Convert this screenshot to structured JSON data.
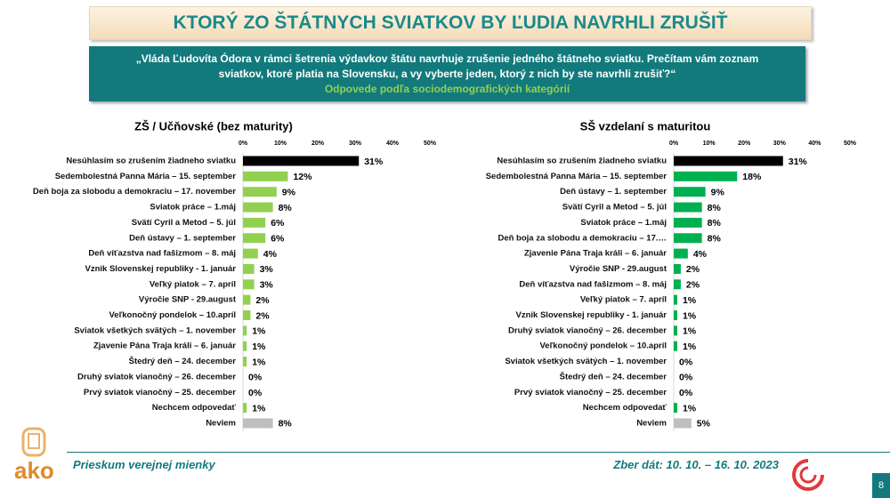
{
  "header": {
    "title": "KTORÝ ZO ŠTÁTNYCH SVIATKOV BY ĽUDIA NAVRHLI ZRUŠIŤ",
    "question_line1": "„Vláda Ľudovíta Ódora v rámci šetrenia výdavkov štátu navrhuje zrušenie jedného štátneho sviatku. Prečítam vám zoznam",
    "question_line2": "sviatkov,  ktoré platia na Slovensku, a vy vyberte jeden,  ktorý z nich by ste navrhli zrušiť?“",
    "subtitle": "Odpovede podľa sociodemografických kategórií"
  },
  "footer": {
    "logo": "ako",
    "left": "Prieskum verejnej mienky",
    "right": "Zber dát: 10. 10. – 16. 10. 2023",
    "page": "8"
  },
  "chart_data": [
    {
      "type": "bar",
      "orientation": "horizontal",
      "title": "ZŠ / Učňovské (bez maturity)",
      "categories": [
        "Nesúhlasím so zrušením žiadneho sviatku",
        "Sedembolestná Panna Mária – 15. september",
        "Deň boja za slobodu a demokraciu – 17. november",
        "Sviatok práce – 1.máj",
        "Svätí Cyril a Metod – 5. júl",
        "Deň ústavy – 1. september",
        "Deň víťazstva nad fašizmom – 8. máj",
        "Vznik Slovenskej republiky - 1. január",
        "Veľký piatok – 7. apríl",
        "Výročie SNP - 29.august",
        "Veľkonočný pondelok – 10.apríl",
        "Sviatok všetkých svätých – 1. november",
        "Zjavenie Pána Traja králi – 6. január",
        "Štedrý deň – 24. december",
        "Druhý sviatok vianočný – 26. december",
        "Prvý sviatok vianočný – 25. december",
        "Nechcem odpovedať",
        "Neviem"
      ],
      "values": [
        31,
        12,
        9,
        8,
        6,
        6,
        4,
        3,
        3,
        2,
        2,
        1,
        1,
        1,
        0,
        0,
        1,
        8
      ],
      "value_labels": [
        "31%",
        "12%",
        "9%",
        "8%",
        "6%",
        "6%",
        "4%",
        "3%",
        "3%",
        "2%",
        "2%",
        "1%",
        "1%",
        "1%",
        "0%",
        "0%",
        "1%",
        "8%"
      ],
      "colors": [
        "#000000",
        "#92d050",
        "#92d050",
        "#92d050",
        "#92d050",
        "#92d050",
        "#92d050",
        "#92d050",
        "#92d050",
        "#92d050",
        "#92d050",
        "#92d050",
        "#92d050",
        "#92d050",
        "#92d050",
        "#92d050",
        "#92d050",
        "#bfbfbf"
      ],
      "xlim": [
        0,
        50
      ],
      "xticks": [
        {
          "value": 0,
          "label": "0%"
        },
        {
          "value": 10,
          "label": "10%"
        },
        {
          "value": 20,
          "label": "20%"
        },
        {
          "value": 30,
          "label": "30%"
        },
        {
          "value": 40,
          "label": "40%"
        },
        {
          "value": 50,
          "label": "50%"
        }
      ]
    },
    {
      "type": "bar",
      "orientation": "horizontal",
      "title": "SŠ vzdelaní s maturitou",
      "categories": [
        "Nesúhlasím so zrušením žiadneho sviatku",
        "Sedembolestná Panna Mária – 15. september",
        "Deň ústavy – 1. september",
        "Svätí Cyril a Metod – 5. júl",
        "Sviatok práce – 1.máj",
        "Deň boja za slobodu a demokraciu – 17.…",
        "Zjavenie Pána Traja králi – 6. január",
        "Výročie SNP - 29.august",
        "Deň víťazstva nad fašizmom – 8. máj",
        "Veľký piatok – 7. apríl",
        "Vznik Slovenskej republiky - 1. január",
        "Druhý sviatok vianočný – 26. december",
        "Veľkonočný pondelok – 10.apríl",
        "Sviatok všetkých svätých – 1. november",
        "Štedrý deň – 24. december",
        "Prvý sviatok vianočný – 25. december",
        "Nechcem odpovedať",
        "Neviem"
      ],
      "values": [
        31,
        18,
        9,
        8,
        8,
        8,
        4,
        2,
        2,
        1,
        1,
        1,
        1,
        0,
        0,
        0,
        1,
        5
      ],
      "value_labels": [
        "31%",
        "18%",
        "9%",
        "8%",
        "8%",
        "8%",
        "4%",
        "2%",
        "2%",
        "1%",
        "1%",
        "1%",
        "1%",
        "0%",
        "0%",
        "0%",
        "1%",
        "5%"
      ],
      "colors": [
        "#000000",
        "#00b050",
        "#00b050",
        "#00b050",
        "#00b050",
        "#00b050",
        "#00b050",
        "#00b050",
        "#00b050",
        "#00b050",
        "#00b050",
        "#00b050",
        "#00b050",
        "#00b050",
        "#00b050",
        "#00b050",
        "#00b050",
        "#bfbfbf"
      ],
      "xlim": [
        0,
        50
      ],
      "xticks": [
        {
          "value": 0,
          "label": "0%"
        },
        {
          "value": 10,
          "label": "10%"
        },
        {
          "value": 20,
          "label": "20%"
        },
        {
          "value": 30,
          "label": "30%"
        },
        {
          "value": 40,
          "label": "40%"
        },
        {
          "value": 50,
          "label": "50%"
        }
      ]
    }
  ]
}
